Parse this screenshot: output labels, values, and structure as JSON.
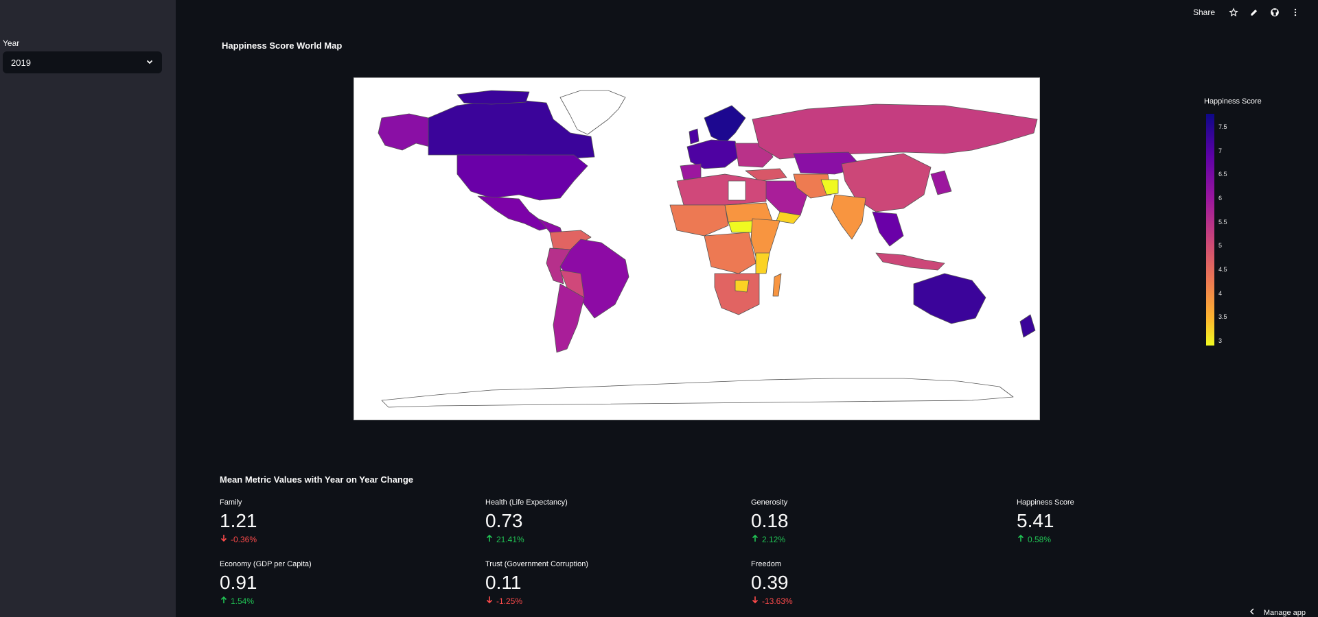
{
  "sidebar": {
    "year_label": "Year",
    "year_selected": "2019"
  },
  "toolbar": {
    "share_label": "Share",
    "icons": [
      "star-icon",
      "edit-icon",
      "github-icon",
      "more-vertical-icon"
    ]
  },
  "map": {
    "title": "Happiness Score World Map",
    "legend_title": "Happiness Score",
    "legend_ticks": [
      "7.5",
      "7",
      "6.5",
      "6",
      "5.5",
      "5",
      "4.5",
      "4",
      "3.5",
      "3"
    ],
    "color_scale": [
      "#0d0887",
      "#5c01a6",
      "#9c179e",
      "#cc4778",
      "#ed7953",
      "#fdb42f",
      "#f0f921"
    ]
  },
  "metrics": {
    "title": "Mean Metric Values with Year on Year Change",
    "items": [
      {
        "label": "Family",
        "value": "1.21",
        "delta": "-0.36%",
        "direction": "down"
      },
      {
        "label": "Health (Life Expectancy)",
        "value": "0.73",
        "delta": "21.41%",
        "direction": "up"
      },
      {
        "label": "Generosity",
        "value": "0.18",
        "delta": "2.12%",
        "direction": "up"
      },
      {
        "label": "Happiness Score",
        "value": "5.41",
        "delta": "0.58%",
        "direction": "up"
      },
      {
        "label": "Economy (GDP per Capita)",
        "value": "0.91",
        "delta": "1.54%",
        "direction": "up"
      },
      {
        "label": "Trust (Government Corruption)",
        "value": "0.11",
        "delta": "-1.25%",
        "direction": "down"
      },
      {
        "label": "Freedom",
        "value": "0.39",
        "delta": "-13.63%",
        "direction": "down"
      }
    ]
  },
  "footer": {
    "manage_label": "Manage app"
  }
}
